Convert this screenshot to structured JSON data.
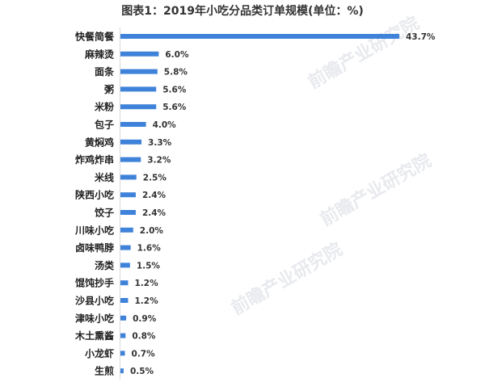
{
  "chart_data": {
    "type": "bar",
    "orientation": "horizontal",
    "title": "图表1：2019年小吃分品类订单规模(单位：%)",
    "categories": [
      "快餐简餐",
      "麻辣烫",
      "面条",
      "粥",
      "米粉",
      "包子",
      "黄焖鸡",
      "炸鸡炸串",
      "米线",
      "陕西小吃",
      "饺子",
      "川味小吃",
      "卤味鸭脖",
      "汤类",
      "馄饨抄手",
      "沙县小吃",
      "津味小吃",
      "木土熏酱",
      "小龙虾",
      "生煎"
    ],
    "values": [
      43.7,
      6.0,
      5.8,
      5.6,
      5.6,
      4.0,
      3.3,
      3.2,
      2.5,
      2.4,
      2.4,
      2.0,
      1.6,
      1.5,
      1.2,
      1.2,
      0.9,
      0.8,
      0.7,
      0.5
    ],
    "value_suffix": "%",
    "xlim": [
      0,
      45
    ],
    "grid": false,
    "bar_color": "#3f82d9",
    "watermark": "前瞻产业研究院"
  }
}
